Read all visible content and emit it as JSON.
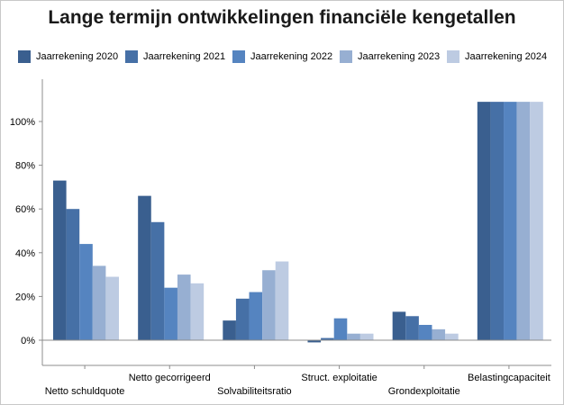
{
  "chart_data": {
    "type": "bar",
    "title": "Lange termijn ontwikkelingen financiële kengetallen",
    "categories": [
      "Netto schuldquote",
      "Netto gecorrigeerd",
      "Solvabiliteitsratio",
      "Struct. exploitatie",
      "Grondexploitatie",
      "Belastingcapaciteit"
    ],
    "series": [
      {
        "name": "Jaarrekening 2020",
        "color": "#3a5f8f",
        "values": [
          73,
          66,
          9,
          -1,
          13,
          109
        ]
      },
      {
        "name": "Jaarrekening 2021",
        "color": "#4670a6",
        "values": [
          60,
          54,
          19,
          1,
          11,
          109
        ]
      },
      {
        "name": "Jaarrekening 2022",
        "color": "#5584c0",
        "values": [
          44,
          24,
          22,
          10,
          7,
          109
        ]
      },
      {
        "name": "Jaarrekening 2023",
        "color": "#97afd2",
        "values": [
          34,
          30,
          32,
          3,
          5,
          109
        ]
      },
      {
        "name": "Jaarrekening 2024",
        "color": "#bdcbe2",
        "values": [
          29,
          26,
          36,
          3,
          3,
          109
        ]
      }
    ],
    "yticks": [
      "0%",
      "20%",
      "40%",
      "60%",
      "80%",
      "100%"
    ],
    "ylim": [
      -12,
      120
    ],
    "legend_position": "top",
    "grid": false
  }
}
